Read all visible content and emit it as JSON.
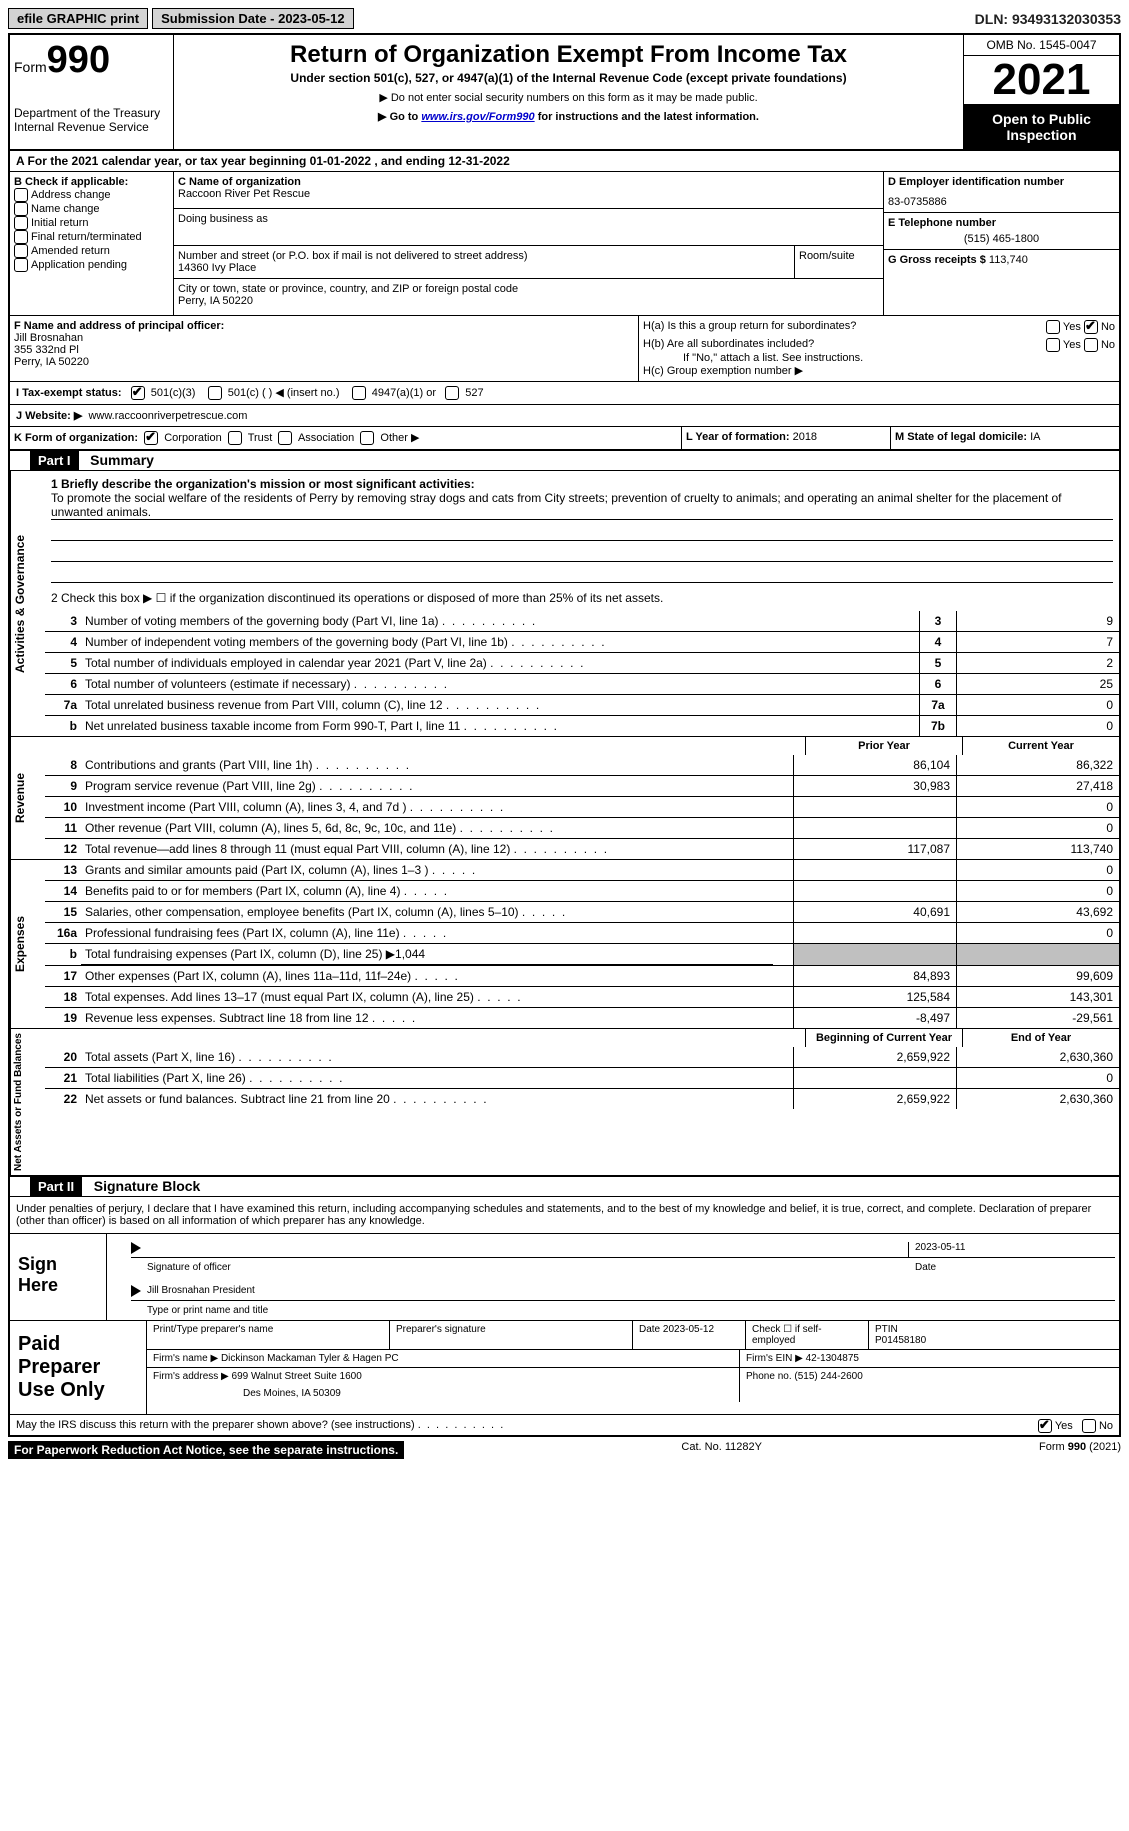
{
  "top": {
    "efile": "efile GRAPHIC print",
    "submission": "Submission Date - 2023-05-12",
    "dln": "DLN: 93493132030353"
  },
  "header": {
    "form_prefix": "Form",
    "form_number": "990",
    "dept": "Department of the Treasury",
    "irs_service": "Internal Revenue Service",
    "title": "Return of Organization Exempt From Income Tax",
    "subtitle": "Under section 501(c), 527, or 4947(a)(1) of the Internal Revenue Code (except private foundations)",
    "note1": "▶ Do not enter social security numbers on this form as it may be made public.",
    "note2_prefix": "▶ Go to ",
    "note2_link": "www.irs.gov/Form990",
    "note2_suffix": " for instructions and the latest information.",
    "omb": "OMB No. 1545-0047",
    "year": "2021",
    "open_public": "Open to Public Inspection"
  },
  "section_a": "A For the 2021 calendar year, or tax year beginning 01-01-2022   , and ending 12-31-2022",
  "section_b": {
    "title": "B Check if applicable:",
    "items": [
      "Address change",
      "Name change",
      "Initial return",
      "Final return/terminated",
      "Amended return",
      "Application pending"
    ]
  },
  "section_c": {
    "label_name": "C Name of organization",
    "org_name": "Raccoon River Pet Rescue",
    "dba_label": "Doing business as",
    "street_label": "Number and street (or P.O. box if mail is not delivered to street address)",
    "room_label": "Room/suite",
    "street": "14360 Ivy Place",
    "city_label": "City or town, state or province, country, and ZIP or foreign postal code",
    "city": "Perry, IA  50220"
  },
  "section_d": {
    "label": "D Employer identification number",
    "value": "83-0735886"
  },
  "section_e": {
    "label": "E Telephone number",
    "value": "(515) 465-1800"
  },
  "section_g": {
    "label": "G Gross receipts $",
    "value": "113,740"
  },
  "section_f": {
    "label": "F  Name and address of principal officer:",
    "name": "Jill Brosnahan",
    "street": "355 332nd Pl",
    "city": "Perry, IA  50220"
  },
  "section_h": {
    "ha_label": "H(a)  Is this a group return for subordinates?",
    "hb_label": "H(b)  Are all subordinates included?",
    "hb_note": "If \"No,\" attach a list. See instructions.",
    "hc_label": "H(c)  Group exemption number ▶",
    "yes": "Yes",
    "no": "No"
  },
  "section_i": {
    "label": "I   Tax-exempt status:",
    "opt1": "501(c)(3)",
    "opt2": "501(c) (  ) ◀ (insert no.)",
    "opt3": "4947(a)(1) or",
    "opt4": "527"
  },
  "section_j": {
    "label": "J   Website: ▶",
    "value": "www.raccoonriverpetrescue.com"
  },
  "section_k": {
    "label": "K Form of organization:",
    "opts": [
      "Corporation",
      "Trust",
      "Association",
      "Other ▶"
    ]
  },
  "section_l": {
    "label": "L Year of formation:",
    "value": "2018"
  },
  "section_m": {
    "label": "M State of legal domicile:",
    "value": "IA"
  },
  "part1": {
    "header": "Part I",
    "title": "Summary",
    "q1_label": "1   Briefly describe the organization's mission or most significant activities:",
    "q1_text": "To promote the social welfare of the residents of Perry by removing stray dogs and cats from City streets; prevention of cruelty to animals; and operating an animal shelter for the placement of unwanted animals.",
    "q2": "2   Check this box ▶ ☐  if the organization discontinued its operations or disposed of more than 25% of its net assets.",
    "vert1": "Activities & Governance",
    "vert2": "Revenue",
    "vert3": "Expenses",
    "vert4": "Net Assets or Fund Balances",
    "rows_act": [
      {
        "n": "3",
        "label": "Number of voting members of the governing body (Part VI, line 1a)",
        "box": "3",
        "val": "9"
      },
      {
        "n": "4",
        "label": "Number of independent voting members of the governing body (Part VI, line 1b)",
        "box": "4",
        "val": "7"
      },
      {
        "n": "5",
        "label": "Total number of individuals employed in calendar year 2021 (Part V, line 2a)",
        "box": "5",
        "val": "2"
      },
      {
        "n": "6",
        "label": "Total number of volunteers (estimate if necessary)",
        "box": "6",
        "val": "25"
      },
      {
        "n": "7a",
        "label": "Total unrelated business revenue from Part VIII, column (C), line 12",
        "box": "7a",
        "val": "0"
      },
      {
        "n": "b",
        "label": "Net unrelated business taxable income from Form 990-T, Part I, line 11",
        "box": "7b",
        "val": "0"
      }
    ],
    "prior_year": "Prior Year",
    "current_year": "Current Year",
    "rows_rev": [
      {
        "n": "8",
        "label": "Contributions and grants (Part VIII, line 1h)",
        "py": "86,104",
        "cy": "86,322"
      },
      {
        "n": "9",
        "label": "Program service revenue (Part VIII, line 2g)",
        "py": "30,983",
        "cy": "27,418"
      },
      {
        "n": "10",
        "label": "Investment income (Part VIII, column (A), lines 3, 4, and 7d )",
        "py": "",
        "cy": "0"
      },
      {
        "n": "11",
        "label": "Other revenue (Part VIII, column (A), lines 5, 6d, 8c, 9c, 10c, and 11e)",
        "py": "",
        "cy": "0"
      },
      {
        "n": "12",
        "label": "Total revenue—add lines 8 through 11 (must equal Part VIII, column (A), line 12)",
        "py": "117,087",
        "cy": "113,740"
      }
    ],
    "rows_exp": [
      {
        "n": "13",
        "label": "Grants and similar amounts paid (Part IX, column (A), lines 1–3 )",
        "py": "",
        "cy": "0"
      },
      {
        "n": "14",
        "label": "Benefits paid to or for members (Part IX, column (A), line 4)",
        "py": "",
        "cy": "0"
      },
      {
        "n": "15",
        "label": "Salaries, other compensation, employee benefits (Part IX, column (A), lines 5–10)",
        "py": "40,691",
        "cy": "43,692"
      },
      {
        "n": "16a",
        "label": "Professional fundraising fees (Part IX, column (A), line 11e)",
        "py": "",
        "cy": "0"
      },
      {
        "n": "b",
        "label": "Total fundraising expenses (Part IX, column (D), line 25) ▶1,044",
        "grey": true
      },
      {
        "n": "17",
        "label": "Other expenses (Part IX, column (A), lines 11a–11d, 11f–24e)",
        "py": "84,893",
        "cy": "99,609"
      },
      {
        "n": "18",
        "label": "Total expenses. Add lines 13–17 (must equal Part IX, column (A), line 25)",
        "py": "125,584",
        "cy": "143,301"
      },
      {
        "n": "19",
        "label": "Revenue less expenses. Subtract line 18 from line 12",
        "py": "-8,497",
        "cy": "-29,561"
      }
    ],
    "begin_year": "Beginning of Current Year",
    "end_year": "End of Year",
    "rows_net": [
      {
        "n": "20",
        "label": "Total assets (Part X, line 16)",
        "py": "2,659,922",
        "cy": "2,630,360"
      },
      {
        "n": "21",
        "label": "Total liabilities (Part X, line 26)",
        "py": "",
        "cy": "0"
      },
      {
        "n": "22",
        "label": "Net assets or fund balances. Subtract line 21 from line 20",
        "py": "2,659,922",
        "cy": "2,630,360"
      }
    ]
  },
  "part2": {
    "header": "Part II",
    "title": "Signature Block",
    "declaration": "Under penalties of perjury, I declare that I have examined this return, including accompanying schedules and statements, and to the best of my knowledge and belief, it is true, correct, and complete. Declaration of preparer (other than officer) is based on all information of which preparer has any knowledge.",
    "sign_here": "Sign Here",
    "sig_officer": "Signature of officer",
    "sig_date": "2023-05-11",
    "date_label": "Date",
    "officer_name": "Jill Brosnahan  President",
    "type_name_label": "Type or print name and title",
    "paid_preparer": "Paid Preparer Use Only",
    "prep_name_label": "Print/Type preparer's name",
    "prep_sig_label": "Preparer's signature",
    "date2": "Date 2023-05-12",
    "check_self": "Check ☐ if self-employed",
    "ptin_label": "PTIN",
    "ptin": "P01458180",
    "firm_name_label": "Firm's name    ▶",
    "firm_name": "Dickinson Mackaman Tyler & Hagen PC",
    "firm_ein_label": "Firm's EIN ▶",
    "firm_ein": "42-1304875",
    "firm_addr_label": "Firm's address ▶",
    "firm_addr1": "699 Walnut Street Suite 1600",
    "firm_addr2": "Des Moines, IA  50309",
    "phone_label": "Phone no.",
    "phone": "(515) 244-2600",
    "discuss": "May the IRS discuss this return with the preparer shown above? (see instructions)",
    "yes": "Yes",
    "no": "No"
  },
  "footer": {
    "paperwork": "For Paperwork Reduction Act Notice, see the separate instructions.",
    "cat": "Cat. No. 11282Y",
    "form": "Form 990 (2021)"
  }
}
